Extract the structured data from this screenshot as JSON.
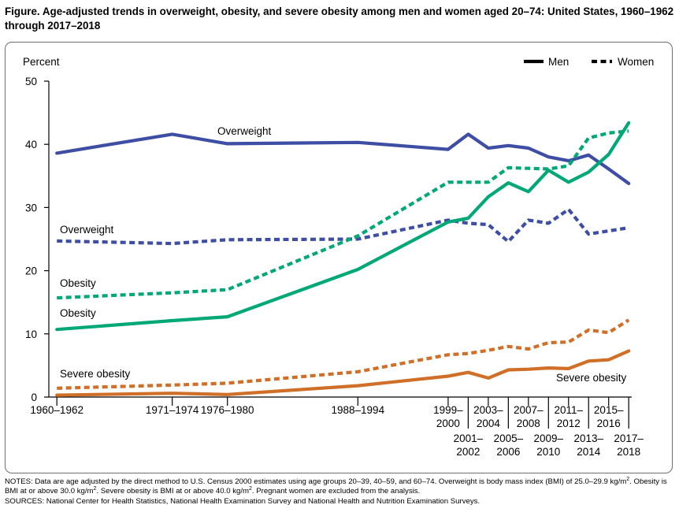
{
  "title": "Figure. Age-adjusted trends in overweight, obesity, and severe obesity among men and women aged 20–74: United States, 1960–1962 through 2017–2018",
  "notes": {
    "line1_before_sup1": "NOTES: Data are age adjusted by the direct method to U.S. Census 2000 estimates using age groups 20–39, 40–59, and 60–74. Overweight is body mass index (BMI) of 25.0–29.9 kg/m",
    "sup1": "2",
    "line1_between": ". Obesity is BMI at or above 30.0 kg/m",
    "sup2": "2",
    "line1_between2": ". Severe obesity is BMI at or above 40.0 kg/m",
    "sup3": "2",
    "line1_after": ". Pregnant women are excluded from the analysis.",
    "sources": "SOURCES: National Center for Health Statistics, National Health Examination Survey and National Health and Nutrition Examination Surveys."
  },
  "colors": {
    "overweight": "#3d4ea4",
    "obesity": "#00a878",
    "severe_obesity": "#d06f28",
    "axis": "#000000"
  },
  "chart_data": {
    "type": "line",
    "ylabel": "Percent",
    "ylim": [
      0,
      50
    ],
    "yticks": [
      0,
      10,
      20,
      30,
      40,
      50
    ],
    "x_positions": [
      1961,
      1972.5,
      1978,
      1991,
      2000,
      2002,
      2004,
      2006,
      2008,
      2010,
      2012,
      2014,
      2016,
      2018
    ],
    "x_tick_labels": [
      {
        "x": 1961,
        "lines": [
          "1960–1962"
        ],
        "row": "top"
      },
      {
        "x": 1972.5,
        "lines": [
          "1971–1974"
        ],
        "row": "top"
      },
      {
        "x": 1978,
        "lines": [
          "1976–1980"
        ],
        "row": "top"
      },
      {
        "x": 1991,
        "lines": [
          "1988–1994"
        ],
        "row": "top"
      },
      {
        "x": 2000,
        "lines": [
          "1999–",
          "2000"
        ],
        "row": "top"
      },
      {
        "x": 2002,
        "lines": [
          "2001–",
          "2002"
        ],
        "row": "bottom"
      },
      {
        "x": 2004,
        "lines": [
          "2003–",
          "2004"
        ],
        "row": "top"
      },
      {
        "x": 2006,
        "lines": [
          "2005–",
          "2006"
        ],
        "row": "bottom"
      },
      {
        "x": 2008,
        "lines": [
          "2007–",
          "2008"
        ],
        "row": "top"
      },
      {
        "x": 2010,
        "lines": [
          "2009–",
          "2010"
        ],
        "row": "bottom"
      },
      {
        "x": 2012,
        "lines": [
          "2011–",
          "2012"
        ],
        "row": "top"
      },
      {
        "x": 2014,
        "lines": [
          "2013–",
          "2014"
        ],
        "row": "bottom"
      },
      {
        "x": 2016,
        "lines": [
          "2015–",
          "2016"
        ],
        "row": "top"
      },
      {
        "x": 2018,
        "lines": [
          "2017–",
          "2018"
        ],
        "row": "bottom"
      }
    ],
    "legend": {
      "placement": "top-right",
      "items": [
        {
          "label": "Men",
          "style": "solid"
        },
        {
          "label": "Women",
          "style": "dotted"
        }
      ]
    },
    "series": [
      {
        "measure": "overweight",
        "group": "Men",
        "style": "solid",
        "x": [
          1961,
          1972.5,
          1978,
          1991,
          2000,
          2002,
          2004,
          2006,
          2008,
          2010,
          2012,
          2014,
          2016,
          2018
        ],
        "values": [
          38.6,
          41.6,
          40.1,
          40.3,
          39.2,
          41.6,
          39.4,
          39.8,
          39.4,
          38.0,
          37.4,
          38.3,
          36.1,
          33.8
        ]
      },
      {
        "measure": "overweight",
        "group": "Women",
        "style": "dotted",
        "x": [
          1961,
          1972.5,
          1978,
          1991,
          2000,
          2002,
          2004,
          2006,
          2008,
          2010,
          2012,
          2014,
          2016,
          2018
        ],
        "values": [
          24.7,
          24.3,
          24.9,
          25.0,
          28.0,
          27.5,
          27.3,
          24.6,
          28.0,
          27.5,
          29.7,
          25.8,
          26.3,
          26.8
        ]
      },
      {
        "measure": "obesity",
        "group": "Men",
        "style": "solid",
        "x": [
          1961,
          1972.5,
          1978,
          1991,
          2000,
          2002,
          2004,
          2006,
          2008,
          2010,
          2012,
          2014,
          2016,
          2018
        ],
        "values": [
          10.7,
          12.1,
          12.7,
          20.2,
          27.7,
          28.3,
          31.7,
          33.9,
          32.5,
          35.9,
          34.0,
          35.6,
          38.4,
          43.4
        ]
      },
      {
        "measure": "obesity",
        "group": "Women",
        "style": "dotted",
        "x": [
          1961,
          1972.5,
          1978,
          1991,
          2000,
          2002,
          2004,
          2006,
          2008,
          2010,
          2012,
          2014,
          2016,
          2018
        ],
        "values": [
          15.7,
          16.5,
          17.0,
          25.5,
          34.0,
          34.0,
          34.0,
          36.3,
          36.2,
          36.1,
          36.6,
          41.0,
          41.8,
          42.1
        ]
      },
      {
        "measure": "severe_obesity",
        "group": "Men",
        "style": "solid",
        "x": [
          1961,
          1972.5,
          1978,
          1991,
          2000,
          2002,
          2004,
          2006,
          2008,
          2010,
          2012,
          2014,
          2016,
          2018
        ],
        "values": [
          0.3,
          0.6,
          0.4,
          1.8,
          3.3,
          3.9,
          3.0,
          4.3,
          4.4,
          4.6,
          4.5,
          5.7,
          5.9,
          7.3
        ]
      },
      {
        "measure": "severe_obesity",
        "group": "Women",
        "style": "dotted",
        "x": [
          1961,
          1972.5,
          1978,
          1991,
          2000,
          2002,
          2004,
          2006,
          2008,
          2010,
          2012,
          2014,
          2016,
          2018
        ],
        "values": [
          1.4,
          1.9,
          2.2,
          4.0,
          6.7,
          6.9,
          7.4,
          8.0,
          7.6,
          8.6,
          8.7,
          10.6,
          10.2,
          12.2
        ]
      }
    ],
    "annotations": [
      {
        "text": "Overweight",
        "series": 0
      },
      {
        "text": "Overweight",
        "series": 1
      },
      {
        "text": "Obesity",
        "series": 3
      },
      {
        "text": "Obesity",
        "series": 2
      },
      {
        "text": "Severe obesity",
        "series": 5
      },
      {
        "text": "Severe obesity",
        "series": 4
      }
    ]
  }
}
